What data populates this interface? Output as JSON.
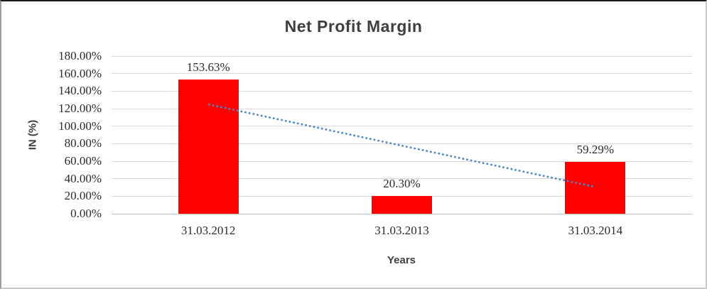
{
  "chart_data": {
    "type": "bar",
    "title": "Net Profit Margin",
    "xlabel": "Years",
    "ylabel": "IN (%)",
    "categories": [
      "31.03.2012",
      "31.03.2013",
      "31.03.2014"
    ],
    "values": [
      153.63,
      20.3,
      59.29
    ],
    "data_labels": [
      "153.63%",
      "20.30%",
      "59.29%"
    ],
    "ylim": [
      0,
      180
    ],
    "ytick_step": 20,
    "ytick_labels": [
      "0.00%",
      "20.00%",
      "40.00%",
      "60.00%",
      "80.00%",
      "100.00%",
      "120.00%",
      "140.00%",
      "160.00%",
      "180.00%"
    ],
    "grid": true,
    "legend": "none",
    "bar_color": "#ff0000",
    "gridline_color": "#d9d9d9",
    "axis_line_color": "#bfbfbf",
    "text_color": "#2b2b2b",
    "title_color": "#3f3f3f",
    "trendline": {
      "type": "linear",
      "style": "dotted",
      "color": "#4a86c8",
      "endpoints_pct": [
        124.9,
        30.6
      ]
    }
  }
}
